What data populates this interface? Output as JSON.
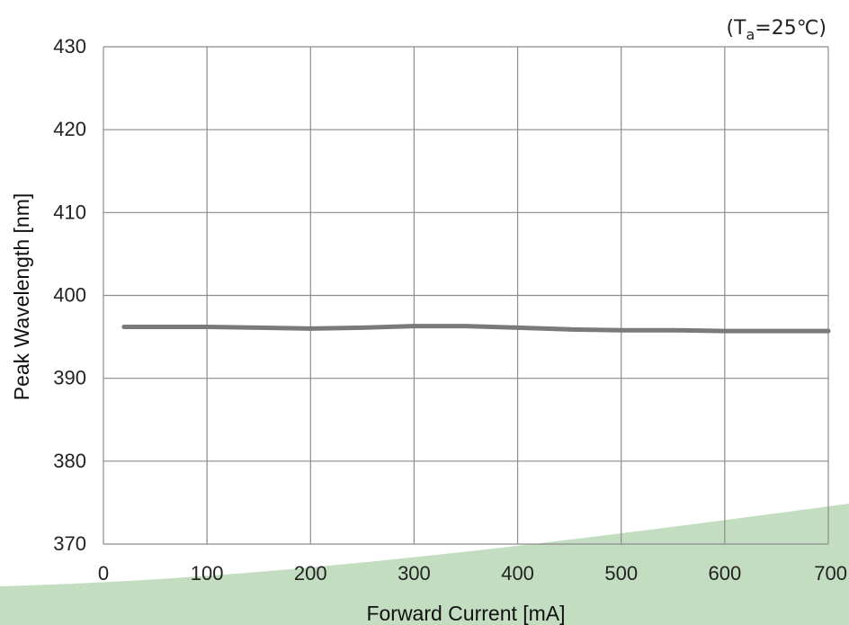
{
  "chart_data": {
    "type": "line",
    "title": "",
    "condition": {
      "prefix": "(T",
      "subscript": "a",
      "suffix": "=25℃)"
    },
    "xlabel": "Forward Current [mA]",
    "ylabel": "Peak Wavelength [nm]",
    "xlim": [
      0,
      700
    ],
    "ylim": [
      370,
      430
    ],
    "xticks": [
      0,
      100,
      200,
      300,
      400,
      500,
      600,
      700
    ],
    "yticks": [
      370,
      380,
      390,
      400,
      410,
      420,
      430
    ],
    "grid": true,
    "legend": "none",
    "series": [
      {
        "x": [
          20,
          50,
          100,
          150,
          200,
          250,
          300,
          350,
          400,
          450,
          500,
          550,
          600,
          650,
          700
        ],
        "y": [
          396.2,
          396.2,
          396.2,
          396.1,
          396.0,
          396.1,
          396.3,
          396.3,
          396.1,
          395.9,
          395.8,
          395.8,
          395.7,
          395.7,
          395.7
        ]
      }
    ],
    "colors": {
      "line": "#7a7a7a",
      "grid": "#8c8c8c",
      "background_swoosh": "#c3ddc1"
    }
  }
}
